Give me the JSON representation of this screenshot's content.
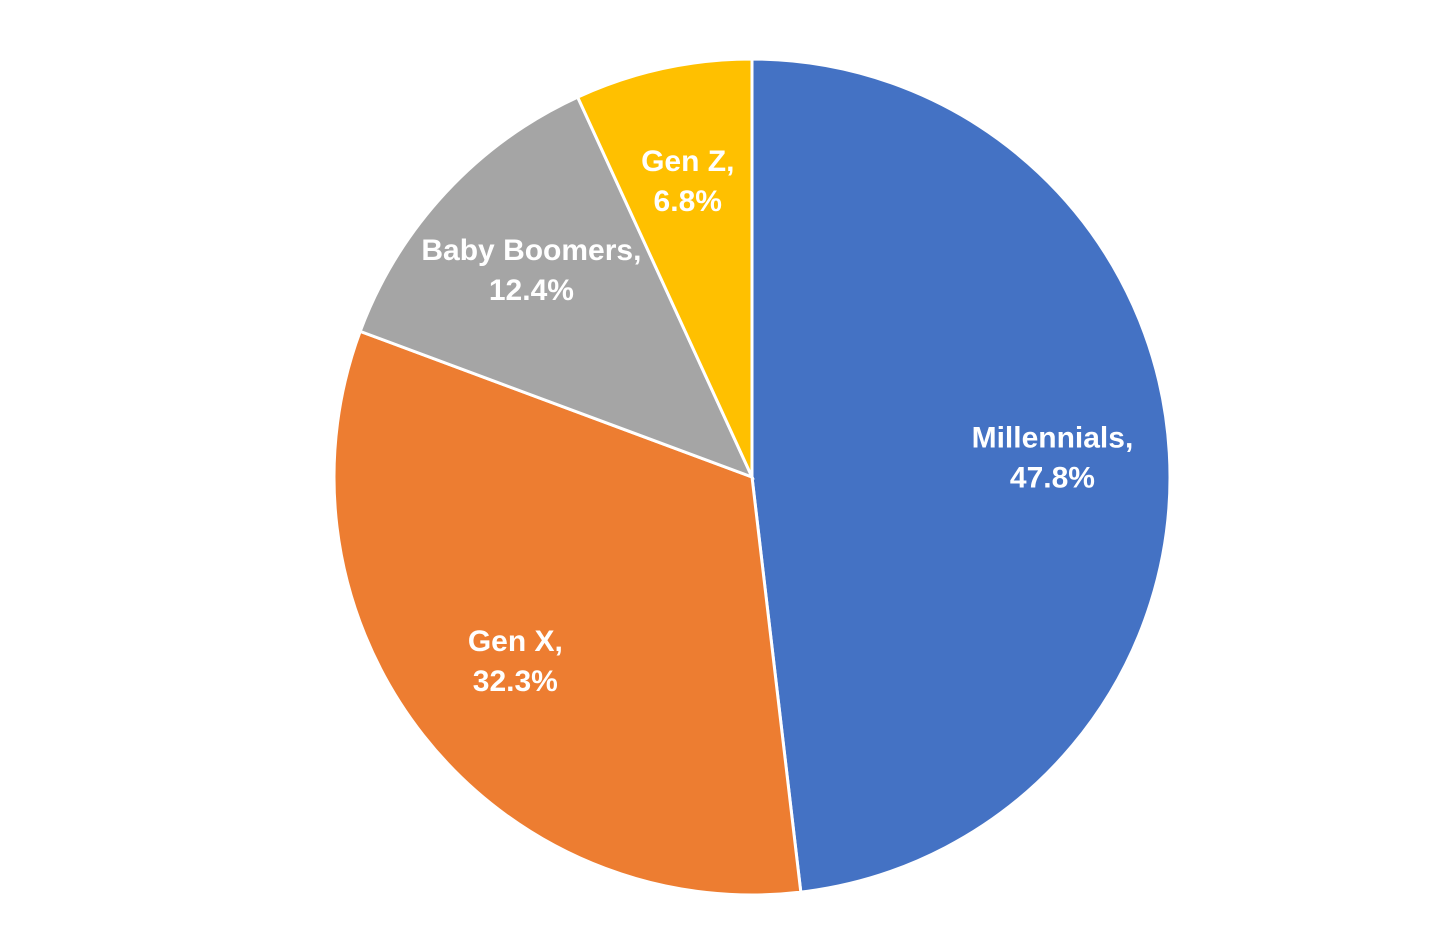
{
  "chart_data": {
    "type": "pie",
    "categories": [
      "Millennials,",
      "Gen X,",
      "Baby Boomers,",
      "Gen Z,"
    ],
    "values": [
      47.8,
      32.3,
      12.4,
      6.8
    ],
    "value_labels": [
      "47.8%",
      "32.3%",
      "12.4%",
      "6.8%"
    ],
    "colors": [
      "#4472c4",
      "#ed7d31",
      "#a5a5a5",
      "#ffc000"
    ]
  }
}
